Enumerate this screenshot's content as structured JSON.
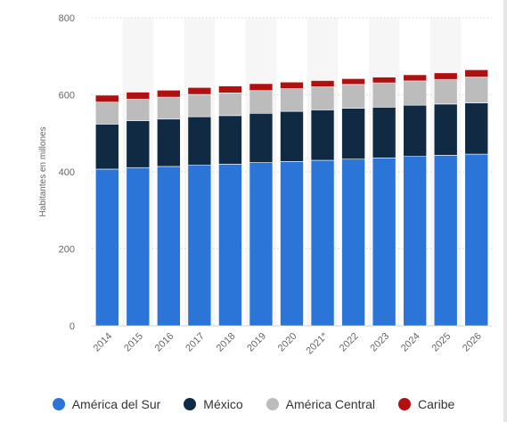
{
  "chart_data": {
    "type": "bar",
    "stacked": true,
    "ylabel": "Habitantes en millones",
    "xlabel": "",
    "ylim": [
      0,
      800
    ],
    "yticks": [
      0,
      200,
      400,
      600,
      800
    ],
    "grid": true,
    "legend_position": "bottom",
    "categories": [
      "2014",
      "2015",
      "2016",
      "2017",
      "2018",
      "2019",
      "2020",
      "2021*",
      "2022",
      "2023",
      "2024",
      "2025",
      "2026"
    ],
    "series": [
      {
        "name": "América del Sur",
        "color": "#2b74d8",
        "values": [
          407,
          411,
          414,
          417,
          420,
          424,
          427,
          430,
          433,
          436,
          440,
          443,
          446
        ]
      },
      {
        "name": "México",
        "color": "#0f2a42",
        "values": [
          117,
          122,
          123,
          126,
          126,
          128,
          130,
          131,
          132,
          132,
          133,
          133,
          133
        ]
      },
      {
        "name": "América Central",
        "color": "#bcbcbc",
        "values": [
          57,
          56,
          57,
          58,
          59,
          59,
          59,
          60,
          62,
          63,
          63,
          64,
          67
        ]
      },
      {
        "name": "Caribe",
        "color": "#b01010",
        "values": [
          18,
          18,
          18,
          18,
          18,
          18,
          17,
          16,
          15,
          15,
          16,
          17,
          19
        ]
      }
    ]
  }
}
